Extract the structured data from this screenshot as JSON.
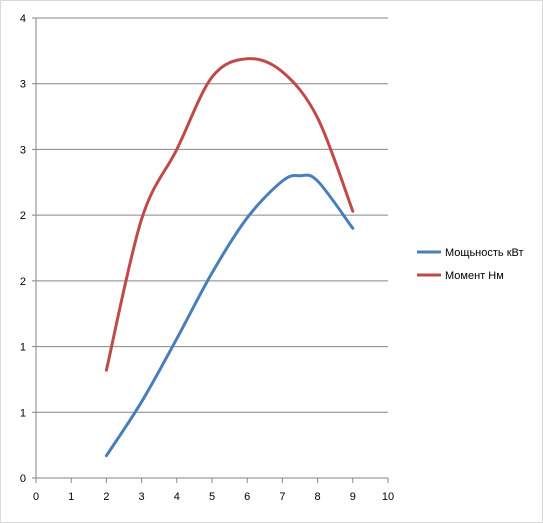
{
  "chart_data": {
    "type": "line",
    "x_ticks": [
      "0",
      "1",
      "2",
      "3",
      "4",
      "5",
      "6",
      "7",
      "8",
      "9",
      "10"
    ],
    "y_ticks": [
      "0",
      "1",
      "1",
      "2",
      "2",
      "3",
      "3",
      "4"
    ],
    "xlim": [
      0,
      10
    ],
    "ylim": [
      0,
      3.5
    ],
    "grid": "horizontal",
    "legend_position": "right",
    "series": [
      {
        "name": "Мощьность кВт",
        "color": "#4a7ebb",
        "x": [
          2,
          3,
          4,
          5,
          6,
          7,
          7.5,
          8,
          9
        ],
        "y": [
          0.17,
          0.58,
          1.06,
          1.56,
          1.98,
          2.26,
          2.3,
          2.26,
          1.9
        ]
      },
      {
        "name": "Момент Нм",
        "color": "#be4b48",
        "x": [
          2,
          3,
          4,
          5,
          6,
          7,
          8,
          9
        ],
        "y": [
          0.82,
          1.97,
          2.5,
          3.05,
          3.19,
          3.09,
          2.74,
          2.03
        ]
      }
    ]
  }
}
